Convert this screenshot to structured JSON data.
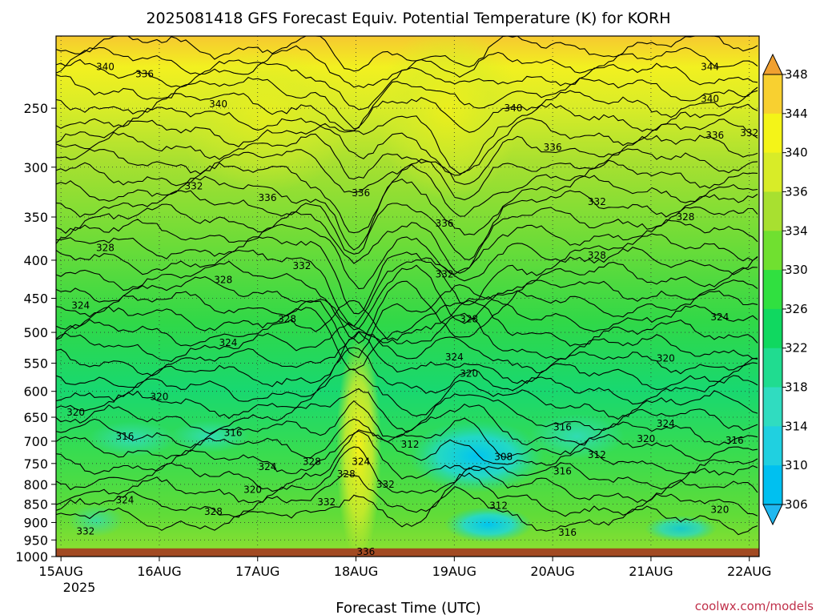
{
  "chart_data": {
    "type": "heatmap",
    "title": "2025081418 GFS Forecast Equiv. Potential Temperature (K) for KORH",
    "xlabel": "Forecast Time (UTC)",
    "ylabel": "",
    "x_ticks": [
      "15AUG",
      "16AUG",
      "17AUG",
      "18AUG",
      "19AUG",
      "20AUG",
      "21AUG",
      "22AUG"
    ],
    "x_year": "2025",
    "x_range_days": [
      -0.05,
      7.1
    ],
    "y_ticks": [
      250,
      300,
      350,
      400,
      450,
      500,
      550,
      600,
      650,
      700,
      750,
      800,
      850,
      900,
      950,
      1000
    ],
    "y_range_hpa": [
      200,
      1000
    ],
    "y_scale": "log-pressure",
    "surface_level_hpa": 975,
    "colorbar": {
      "levels": [
        306,
        310,
        314,
        318,
        322,
        326,
        330,
        334,
        336,
        340,
        344,
        348
      ],
      "colors": [
        "#00c0f0",
        "#20d0e0",
        "#30dcc0",
        "#20dc90",
        "#10d860",
        "#30e040",
        "#70e030",
        "#a8e030",
        "#d8ec28",
        "#f4f418",
        "#f8d030",
        "#f0a830"
      ],
      "under_color": "#20b8f0",
      "over_color": "#f0a030"
    },
    "contour_labels": [
      {
        "text": "340",
        "day": 0.45,
        "p": 220
      },
      {
        "text": "336",
        "day": 0.85,
        "p": 225
      },
      {
        "text": "340",
        "day": 1.6,
        "p": 247
      },
      {
        "text": "332",
        "day": 1.35,
        "p": 318
      },
      {
        "text": "336",
        "day": 2.1,
        "p": 330
      },
      {
        "text": "336",
        "day": 3.05,
        "p": 325
      },
      {
        "text": "336",
        "day": 3.9,
        "p": 357
      },
      {
        "text": "332",
        "day": 2.45,
        "p": 407
      },
      {
        "text": "332",
        "day": 3.9,
        "p": 418
      },
      {
        "text": "340",
        "day": 4.6,
        "p": 250
      },
      {
        "text": "336",
        "day": 5.0,
        "p": 282
      },
      {
        "text": "344",
        "day": 6.6,
        "p": 220
      },
      {
        "text": "340",
        "day": 6.6,
        "p": 243
      },
      {
        "text": "336",
        "day": 6.65,
        "p": 272
      },
      {
        "text": "332",
        "day": 7.0,
        "p": 270
      },
      {
        "text": "332",
        "day": 5.45,
        "p": 334
      },
      {
        "text": "328",
        "day": 6.35,
        "p": 350
      },
      {
        "text": "328",
        "day": 5.45,
        "p": 394
      },
      {
        "text": "328",
        "day": 0.45,
        "p": 385
      },
      {
        "text": "328",
        "day": 1.65,
        "p": 425
      },
      {
        "text": "328",
        "day": 2.3,
        "p": 480
      },
      {
        "text": "328",
        "day": 4.15,
        "p": 480
      },
      {
        "text": "324",
        "day": 0.2,
        "p": 460
      },
      {
        "text": "324",
        "day": 1.7,
        "p": 516
      },
      {
        "text": "324",
        "day": 4.0,
        "p": 540
      },
      {
        "text": "324",
        "day": 6.7,
        "p": 477
      },
      {
        "text": "320",
        "day": 4.15,
        "p": 568
      },
      {
        "text": "320",
        "day": 1.0,
        "p": 610
      },
      {
        "text": "320",
        "day": 6.15,
        "p": 542
      },
      {
        "text": "320",
        "day": 0.15,
        "p": 640
      },
      {
        "text": "316",
        "day": 0.65,
        "p": 690
      },
      {
        "text": "316",
        "day": 1.75,
        "p": 682
      },
      {
        "text": "316",
        "day": 5.1,
        "p": 670
      },
      {
        "text": "316",
        "day": 6.85,
        "p": 698
      },
      {
        "text": "320",
        "day": 7.1,
        "p": 662
      },
      {
        "text": "324",
        "day": 6.15,
        "p": 663
      },
      {
        "text": "320",
        "day": 5.95,
        "p": 695
      },
      {
        "text": "312",
        "day": 3.55,
        "p": 707
      },
      {
        "text": "312",
        "day": 5.45,
        "p": 730
      },
      {
        "text": "308",
        "day": 4.5,
        "p": 735
      },
      {
        "text": "316",
        "day": 5.1,
        "p": 768
      },
      {
        "text": "324",
        "day": 2.1,
        "p": 758
      },
      {
        "text": "324",
        "day": 3.05,
        "p": 746
      },
      {
        "text": "328",
        "day": 2.55,
        "p": 746
      },
      {
        "text": "328",
        "day": 2.9,
        "p": 775
      },
      {
        "text": "320",
        "day": 1.95,
        "p": 813
      },
      {
        "text": "324",
        "day": 0.65,
        "p": 840
      },
      {
        "text": "328",
        "day": 1.55,
        "p": 870
      },
      {
        "text": "332",
        "day": 2.7,
        "p": 845
      },
      {
        "text": "332",
        "day": 3.3,
        "p": 800
      },
      {
        "text": "312",
        "day": 4.45,
        "p": 855
      },
      {
        "text": "320",
        "day": 6.7,
        "p": 865
      },
      {
        "text": "324",
        "day": 7.1,
        "p": 858
      },
      {
        "text": "316",
        "day": 5.15,
        "p": 928
      },
      {
        "text": "332",
        "day": 0.25,
        "p": 925
      },
      {
        "text": "336",
        "day": 3.1,
        "p": 985
      }
    ]
  },
  "credit": "coolwx.com/models"
}
